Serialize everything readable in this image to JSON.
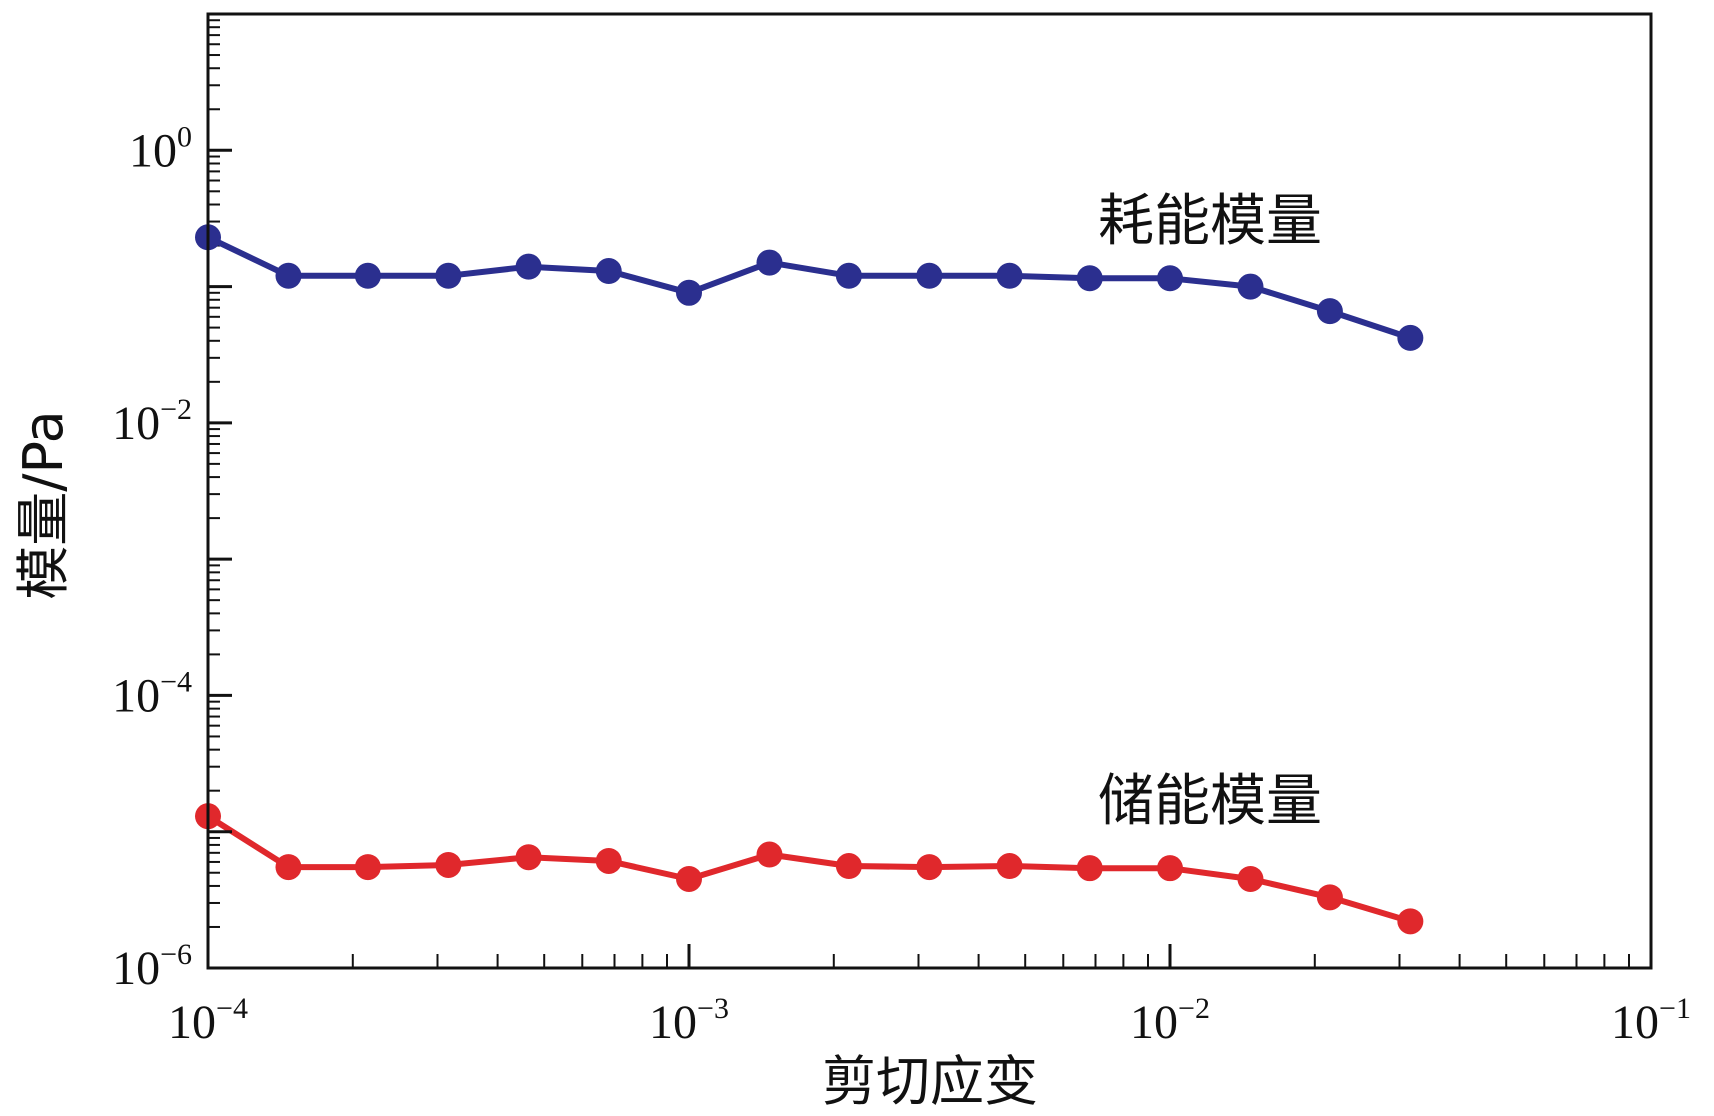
{
  "chart_data": {
    "type": "line",
    "x_scale": "log",
    "y_scale": "log",
    "xlim": [
      0.0001,
      0.1
    ],
    "ylim": [
      1e-06,
      10
    ],
    "x_ticks": [
      {
        "value": 0.0001,
        "base": "10",
        "exp": "−4"
      },
      {
        "value": 0.001,
        "base": "10",
        "exp": "−3"
      },
      {
        "value": 0.01,
        "base": "10",
        "exp": "−2"
      },
      {
        "value": 0.1,
        "base": "10",
        "exp": "−1"
      }
    ],
    "y_ticks": [
      {
        "value": 1e-06,
        "base": "10",
        "exp": "−6"
      },
      {
        "value": 0.0001,
        "base": "10",
        "exp": "−4"
      },
      {
        "value": 0.01,
        "base": "10",
        "exp": "−2"
      },
      {
        "value": 1,
        "base": "10",
        "exp": "0"
      }
    ],
    "xlabel": "剪切应变",
    "ylabel": "模量/Pa",
    "grid": false,
    "x": [
      0.0001,
      0.000147,
      0.000215,
      0.000316,
      0.000464,
      0.000681,
      0.001,
      0.00147,
      0.00215,
      0.00316,
      0.00464,
      0.00681,
      0.01,
      0.0147,
      0.0215,
      0.0316
    ],
    "series": [
      {
        "name": "耗能模量",
        "color": "#2b2f8f",
        "values": [
          0.23,
          0.12,
          0.12,
          0.12,
          0.14,
          0.13,
          0.09,
          0.15,
          0.12,
          0.12,
          0.12,
          0.115,
          0.115,
          0.1,
          0.066,
          0.042
        ]
      },
      {
        "name": "储能模量",
        "color": "#e0282c",
        "values": [
          1.3e-05,
          5.5e-06,
          5.5e-06,
          5.7e-06,
          6.5e-06,
          6.1e-06,
          4.5e-06,
          6.8e-06,
          5.6e-06,
          5.5e-06,
          5.6e-06,
          5.4e-06,
          5.4e-06,
          4.5e-06,
          3.3e-06,
          2.2e-06
        ]
      }
    ]
  }
}
